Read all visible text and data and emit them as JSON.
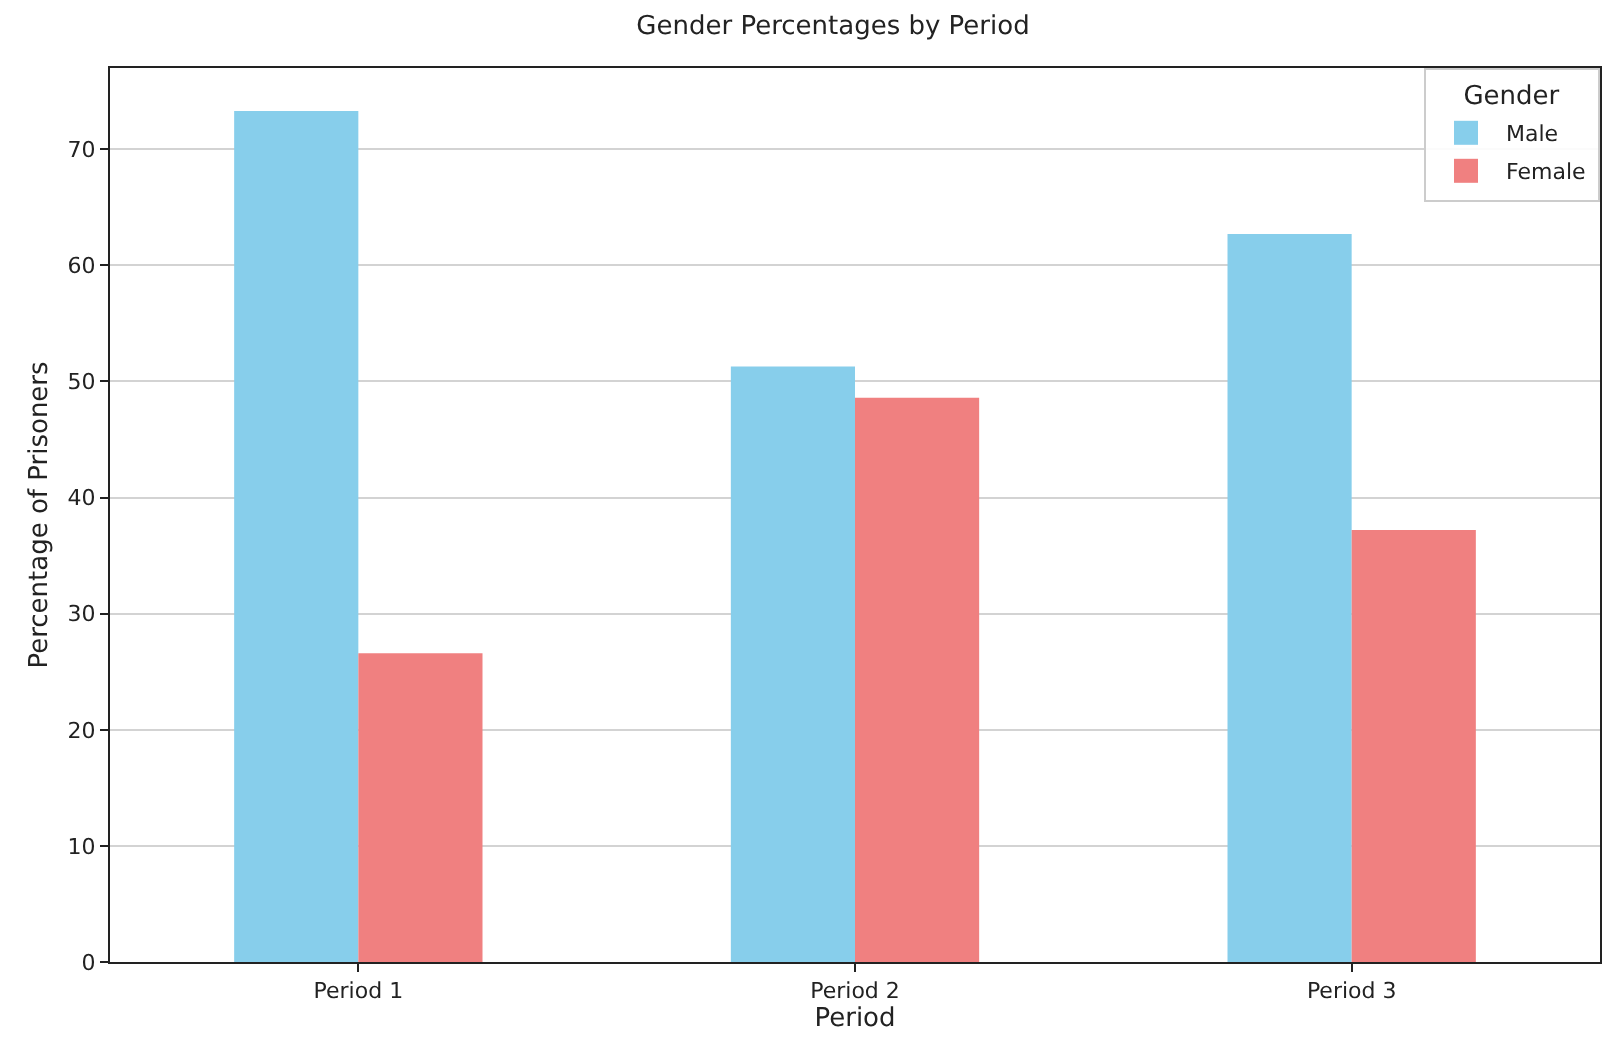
{
  "chart_data": {
    "type": "bar",
    "title": "Gender Percentages by Period",
    "xlabel": "Period",
    "ylabel": "Percentage of Prisoners",
    "legend_title": "Gender",
    "categories": [
      "Period 1",
      "Period 2",
      "Period 3"
    ],
    "series": [
      {
        "name": "Male",
        "color": "#87ceeb",
        "values": [
          73.3,
          51.3,
          62.7
        ]
      },
      {
        "name": "Female",
        "color": "#f08080",
        "values": [
          26.6,
          48.6,
          37.2
        ]
      }
    ],
    "ylim": [
      0,
      77
    ],
    "yticks": [
      0,
      10,
      20,
      30,
      40,
      50,
      60,
      70
    ],
    "grid": "y",
    "legend": "top right"
  }
}
